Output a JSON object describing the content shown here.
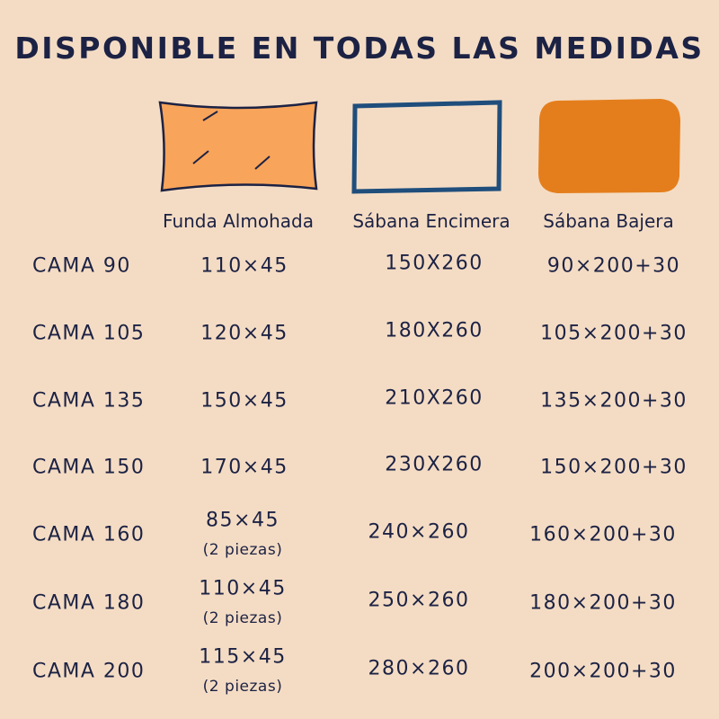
{
  "title": "DISPONIBLE EN TODAS LAS MEDIDAS",
  "columns": [
    "Funda Almohada",
    "Sábana Encimera",
    "Sábana Bajera"
  ],
  "rows": [
    {
      "label": "CAMA 90",
      "funda": "110×45",
      "encimera": "150X260",
      "bajera": "90×200+30"
    },
    {
      "label": "CAMA 105",
      "funda": "120×45",
      "encimera": "180X260",
      "bajera": "105×200+30"
    },
    {
      "label": "CAMA 135",
      "funda": "150×45",
      "encimera": "210X260",
      "bajera": "135×200+30"
    },
    {
      "label": "CAMA 150",
      "funda": "170×45",
      "encimera": "230X260",
      "bajera": "150×200+30"
    },
    {
      "label": "CAMA 160",
      "funda": "85×45",
      "nota": "(2 piezas)",
      "encimera": "240×260",
      "bajera": "160×200+30"
    },
    {
      "label": "CAMA 180",
      "funda": "110×45",
      "nota": "(2 piezas)",
      "encimera": "250×260",
      "bajera": "180×200+30"
    },
    {
      "label": "CAMA 200",
      "funda": "115×45",
      "nota": "(2 piezas)",
      "encimera": "280×260",
      "bajera": "200×200+30"
    }
  ]
}
